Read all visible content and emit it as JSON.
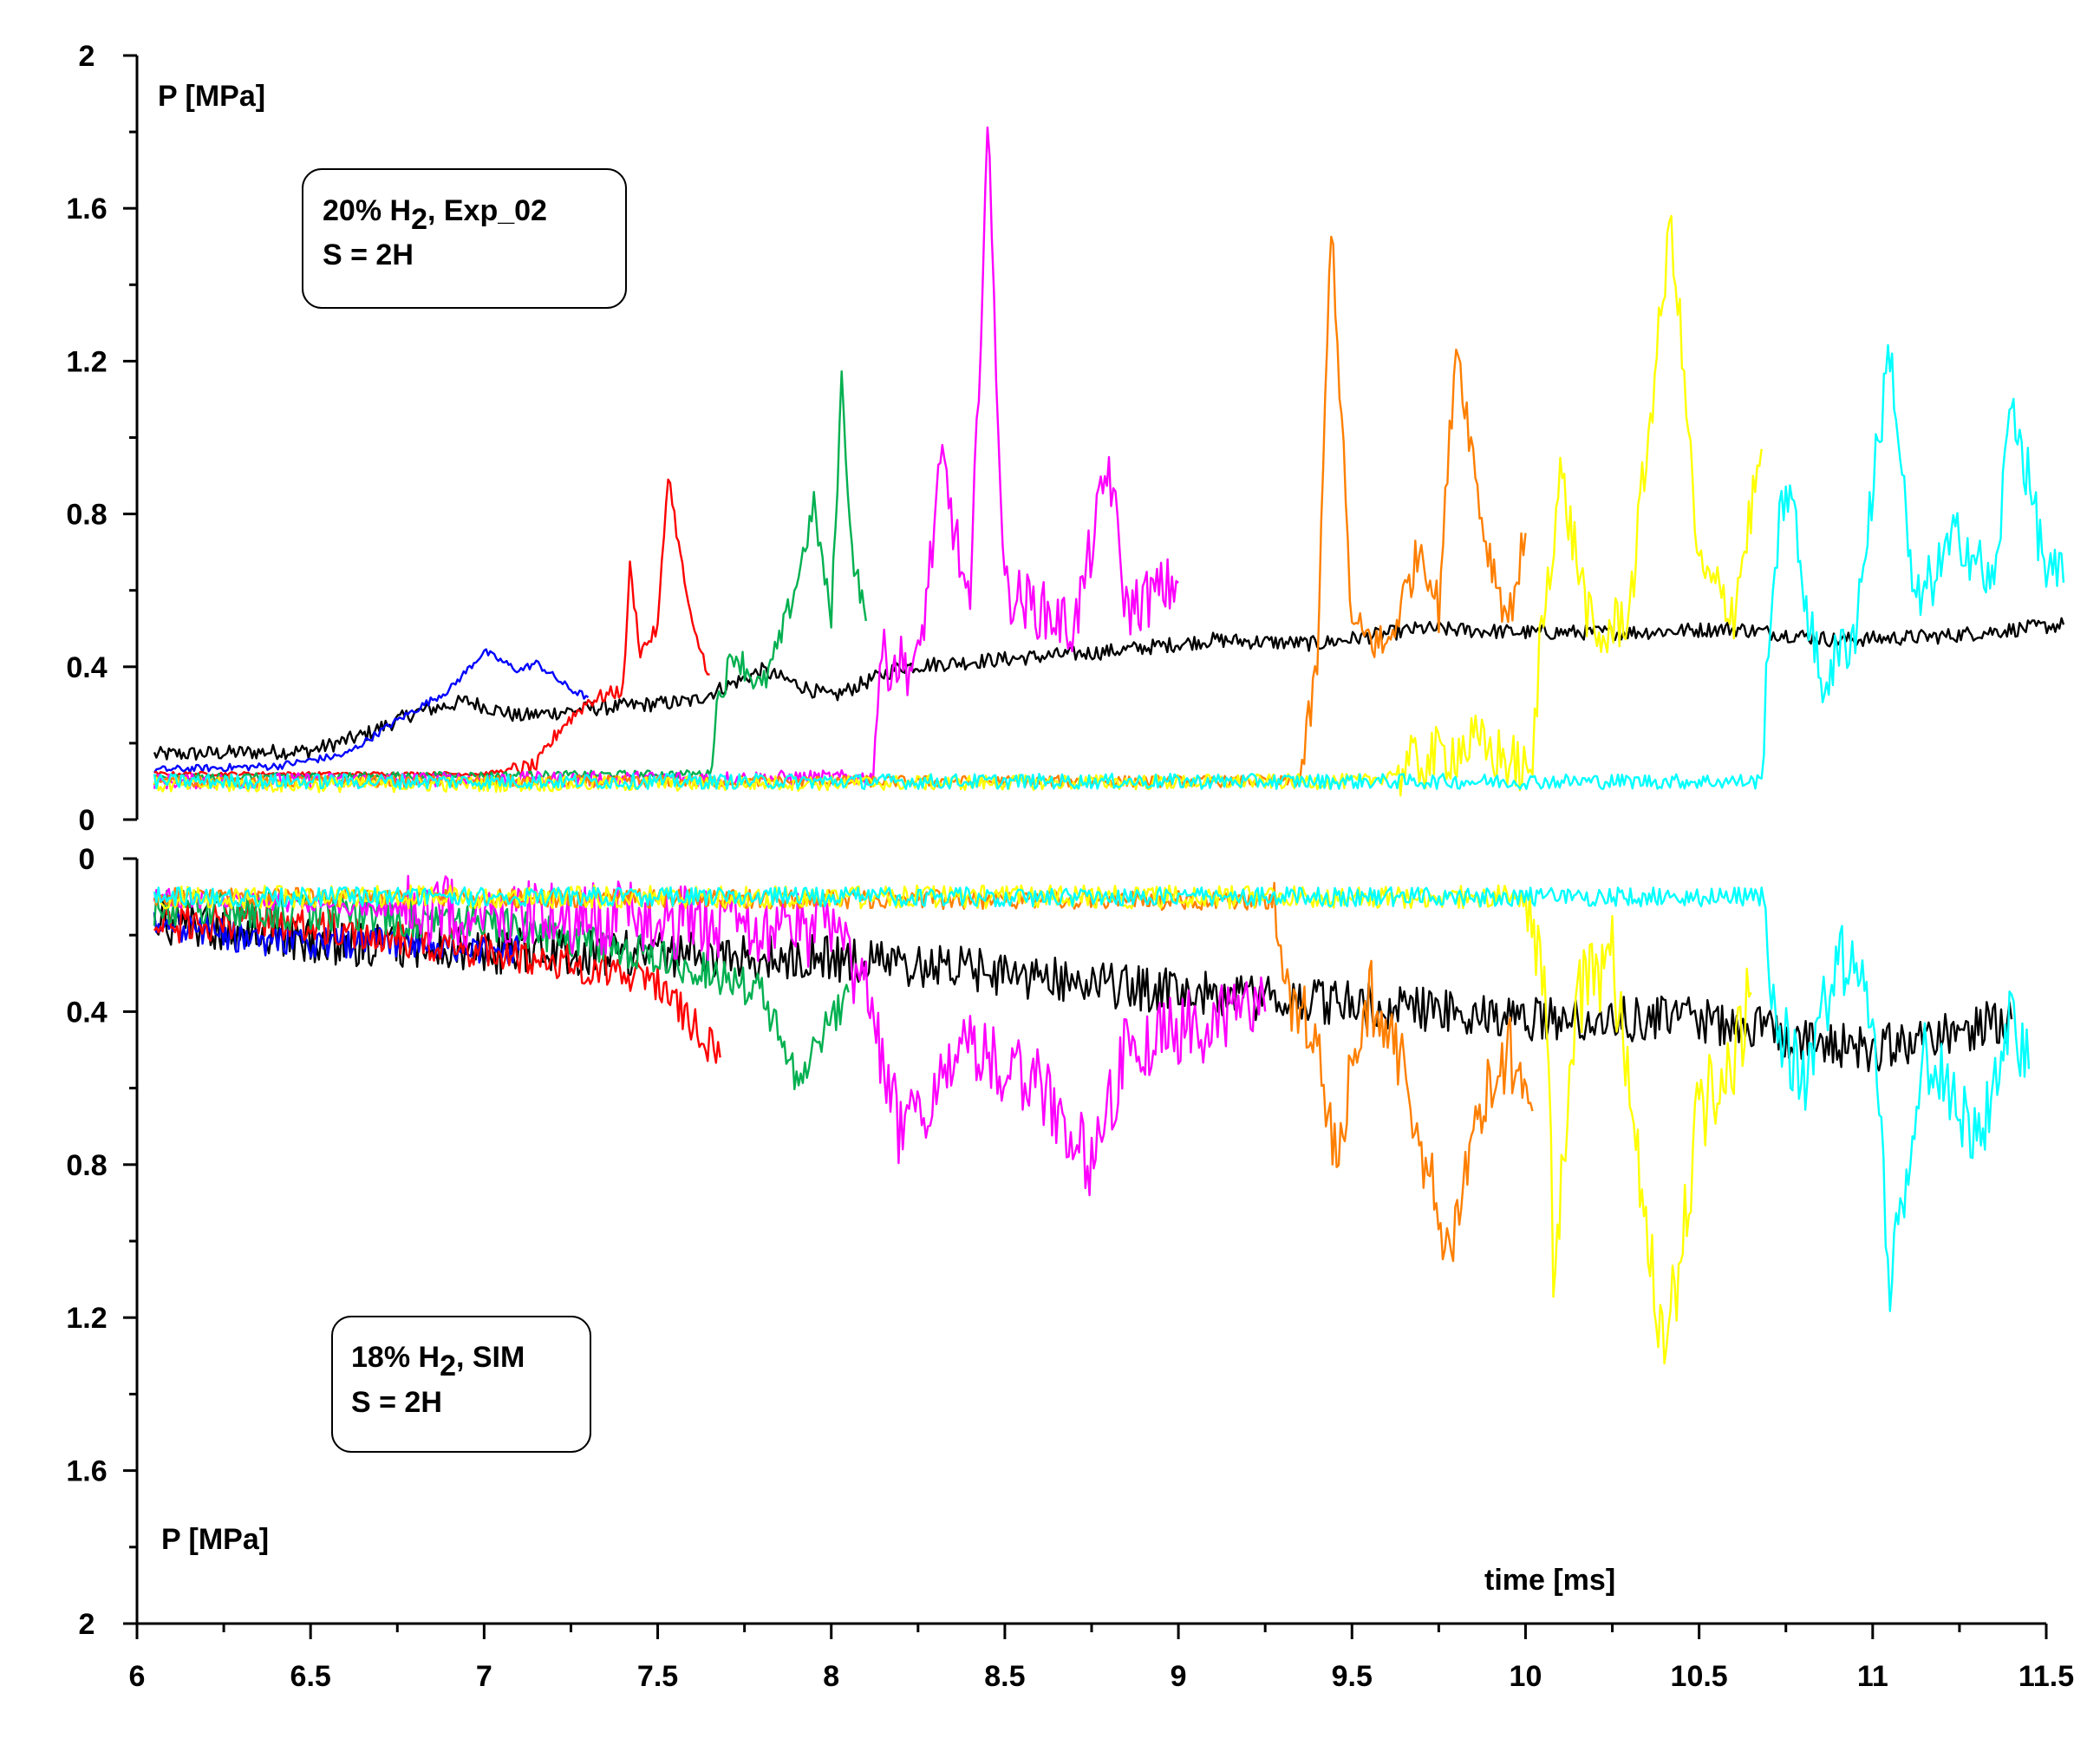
{
  "chart_data": {
    "type": "line",
    "title": "",
    "xlabel": "time [ms]",
    "xlim": [
      6,
      11.5
    ],
    "x_ticks": [
      "6",
      "6.5",
      "7",
      "7.5",
      "8",
      "8.5",
      "9",
      "9.5",
      "10",
      "10.5",
      "11",
      "11.5"
    ],
    "panels": [
      {
        "name": "experiment",
        "ylabel": "P [MPa]",
        "ylim": [
          0,
          2
        ],
        "inverted": false,
        "y_ticks": [
          "0",
          "0.4",
          "0.8",
          "1.2",
          "1.6",
          "2"
        ],
        "annotation": {
          "line1_prefix": "20% H",
          "line1_sub": "2",
          "line1_suffix": ", Exp_02",
          "line2": "S = 2H"
        },
        "series": [
          {
            "name": "black",
            "color": "#000000",
            "base": 0.17,
            "rise_start": 6.55,
            "rise_end": 6.95,
            "after": 0.3,
            "end": 11.55,
            "noise": 0.02,
            "points": [
              [
                6.05,
                0.17
              ],
              [
                6.5,
                0.18
              ],
              [
                6.65,
                0.22
              ],
              [
                6.8,
                0.28
              ],
              [
                6.95,
                0.31
              ],
              [
                7.1,
                0.27
              ],
              [
                7.3,
                0.29
              ],
              [
                7.6,
                0.31
              ],
              [
                7.8,
                0.39
              ],
              [
                8.0,
                0.32
              ],
              [
                8.2,
                0.4
              ],
              [
                8.5,
                0.42
              ],
              [
                8.8,
                0.44
              ],
              [
                9.1,
                0.47
              ],
              [
                9.4,
                0.46
              ],
              [
                9.7,
                0.5
              ],
              [
                10.0,
                0.49
              ],
              [
                10.3,
                0.49
              ],
              [
                10.6,
                0.5
              ],
              [
                10.9,
                0.47
              ],
              [
                11.2,
                0.48
              ],
              [
                11.55,
                0.51
              ]
            ]
          },
          {
            "name": "blue",
            "color": "#0000ff",
            "color_hex": "#0000ff",
            "end": 7.3,
            "noise": 0.01,
            "points": [
              [
                6.05,
                0.13
              ],
              [
                6.4,
                0.14
              ],
              [
                6.6,
                0.17
              ],
              [
                6.75,
                0.26
              ],
              [
                6.9,
                0.34
              ],
              [
                7.0,
                0.44
              ],
              [
                7.1,
                0.39
              ],
              [
                7.15,
                0.41
              ],
              [
                7.25,
                0.34
              ],
              [
                7.3,
                0.32
              ]
            ]
          },
          {
            "name": "red",
            "color": "#ff0000",
            "end": 7.65,
            "noise": 0.02,
            "points": [
              [
                6.05,
                0.12
              ],
              [
                7.0,
                0.12
              ],
              [
                7.15,
                0.14
              ],
              [
                7.22,
                0.24
              ],
              [
                7.3,
                0.31
              ],
              [
                7.4,
                0.34
              ],
              [
                7.42,
                0.66
              ],
              [
                7.45,
                0.44
              ],
              [
                7.5,
                0.5
              ],
              [
                7.53,
                0.91
              ],
              [
                7.56,
                0.72
              ],
              [
                7.6,
                0.5
              ],
              [
                7.65,
                0.38
              ]
            ]
          },
          {
            "name": "green",
            "color": "#00b050",
            "end": 8.1,
            "noise": 0.04,
            "points": [
              [
                6.05,
                0.11
              ],
              [
                7.65,
                0.12
              ],
              [
                7.67,
                0.3
              ],
              [
                7.72,
                0.44
              ],
              [
                7.8,
                0.34
              ],
              [
                7.85,
                0.46
              ],
              [
                7.9,
                0.62
              ],
              [
                7.95,
                0.82
              ],
              [
                8.0,
                0.52
              ],
              [
                8.03,
                1.15
              ],
              [
                8.06,
                0.7
              ],
              [
                8.1,
                0.52
              ]
            ]
          },
          {
            "name": "magenta",
            "color": "#ff00ff",
            "end": 9.0,
            "noise": 0.08,
            "points": [
              [
                6.05,
                0.1
              ],
              [
                8.12,
                0.11
              ],
              [
                8.14,
                0.42
              ],
              [
                8.25,
                0.4
              ],
              [
                8.32,
                0.94
              ],
              [
                8.4,
                0.52
              ],
              [
                8.45,
                1.81
              ],
              [
                8.5,
                0.6
              ],
              [
                8.6,
                0.55
              ],
              [
                8.7,
                0.5
              ],
              [
                8.8,
                0.93
              ],
              [
                8.85,
                0.55
              ],
              [
                8.95,
                0.6
              ],
              [
                9.0,
                0.62
              ]
            ]
          },
          {
            "name": "orange",
            "color": "#ff7f00",
            "end": 10.0,
            "noise": 0.06,
            "points": [
              [
                6.05,
                0.1
              ],
              [
                9.35,
                0.1
              ],
              [
                9.4,
                0.4
              ],
              [
                9.44,
                1.58
              ],
              [
                9.5,
                0.5
              ],
              [
                9.6,
                0.45
              ],
              [
                9.7,
                0.72
              ],
              [
                9.75,
                0.55
              ],
              [
                9.8,
                1.26
              ],
              [
                9.88,
                0.75
              ],
              [
                9.95,
                0.52
              ],
              [
                10.0,
                0.75
              ]
            ]
          },
          {
            "name": "yellow",
            "color": "#ffff00",
            "end": 10.68,
            "noise": 0.08,
            "points": [
              [
                6.05,
                0.09
              ],
              [
                9.55,
                0.1
              ],
              [
                9.85,
                0.2
              ],
              [
                10.02,
                0.12
              ],
              [
                10.04,
                0.45
              ],
              [
                10.1,
                0.9
              ],
              [
                10.2,
                0.45
              ],
              [
                10.3,
                0.55
              ],
              [
                10.42,
                1.57
              ],
              [
                10.5,
                0.65
              ],
              [
                10.6,
                0.55
              ],
              [
                10.68,
                0.97
              ]
            ]
          },
          {
            "name": "cyan",
            "color": "#00ffff",
            "end": 11.55,
            "noise": 0.08,
            "points": [
              [
                6.05,
                0.1
              ],
              [
                10.68,
                0.1
              ],
              [
                10.7,
                0.5
              ],
              [
                10.75,
                0.9
              ],
              [
                10.85,
                0.35
              ],
              [
                10.95,
                0.5
              ],
              [
                11.05,
                1.24
              ],
              [
                11.12,
                0.55
              ],
              [
                11.25,
                0.75
              ],
              [
                11.35,
                0.6
              ],
              [
                11.4,
                1.11
              ],
              [
                11.5,
                0.65
              ],
              [
                11.55,
                0.62
              ]
            ]
          }
        ]
      },
      {
        "name": "simulation",
        "ylabel": "P [MPa]",
        "ylim": [
          0,
          2
        ],
        "inverted": true,
        "y_ticks": [
          "0",
          "0.4",
          "0.8",
          "1.2",
          "1.6",
          "2"
        ],
        "annotation": {
          "line1_prefix": "18% H",
          "line1_sub": "2",
          "line1_suffix": ", SIM",
          "line2": "S = 2H"
        },
        "series": [
          {
            "name": "black",
            "color": "#000000",
            "end": 11.4,
            "noise": 0.06,
            "points": [
              [
                6.05,
                0.16
              ],
              [
                6.5,
                0.22
              ],
              [
                7.0,
                0.24
              ],
              [
                7.5,
                0.25
              ],
              [
                8.0,
                0.26
              ],
              [
                8.5,
                0.3
              ],
              [
                9.0,
                0.35
              ],
              [
                9.5,
                0.38
              ],
              [
                10.0,
                0.42
              ],
              [
                10.5,
                0.42
              ],
              [
                11.0,
                0.5
              ],
              [
                11.4,
                0.42
              ]
            ]
          },
          {
            "name": "blue",
            "color": "#0000ff",
            "end": 7.1,
            "noise": 0.04,
            "points": [
              [
                6.05,
                0.17
              ],
              [
                6.4,
                0.22
              ],
              [
                6.8,
                0.22
              ],
              [
                7.1,
                0.24
              ]
            ]
          },
          {
            "name": "red",
            "color": "#ff0000",
            "end": 7.68,
            "noise": 0.05,
            "points": [
              [
                6.05,
                0.17
              ],
              [
                6.5,
                0.17
              ],
              [
                7.0,
                0.24
              ],
              [
                7.3,
                0.28
              ],
              [
                7.5,
                0.32
              ],
              [
                7.68,
                0.52
              ]
            ]
          },
          {
            "name": "green",
            "color": "#00b050",
            "end": 8.05,
            "noise": 0.05,
            "points": [
              [
                6.05,
                0.13
              ],
              [
                6.5,
                0.14
              ],
              [
                7.0,
                0.17
              ],
              [
                7.5,
                0.25
              ],
              [
                7.8,
                0.35
              ],
              [
                7.9,
                0.57
              ],
              [
                8.05,
                0.35
              ]
            ]
          },
          {
            "name": "magenta",
            "color": "#ff00ff",
            "end": 9.25,
            "noise": 0.1,
            "points": [
              [
                6.05,
                0.1
              ],
              [
                7.5,
                0.16
              ],
              [
                8.0,
                0.2
              ],
              [
                8.1,
                0.35
              ],
              [
                8.2,
                0.72
              ],
              [
                8.4,
                0.5
              ],
              [
                8.6,
                0.6
              ],
              [
                8.75,
                0.8
              ],
              [
                8.85,
                0.5
              ],
              [
                9.0,
                0.45
              ],
              [
                9.25,
                0.4
              ]
            ]
          },
          {
            "name": "orange",
            "color": "#ff7f00",
            "end": 10.02,
            "noise": 0.1,
            "points": [
              [
                6.05,
                0.1
              ],
              [
                9.27,
                0.11
              ],
              [
                9.32,
                0.35
              ],
              [
                9.4,
                0.5
              ],
              [
                9.45,
                0.78
              ],
              [
                9.55,
                0.35
              ],
              [
                9.65,
                0.55
              ],
              [
                9.7,
                0.75
              ],
              [
                9.78,
                1.06
              ],
              [
                9.85,
                0.7
              ],
              [
                9.95,
                0.5
              ],
              [
                10.02,
                0.66
              ]
            ]
          },
          {
            "name": "yellow",
            "color": "#ffff00",
            "end": 10.65,
            "noise": 0.12,
            "points": [
              [
                6.05,
                0.1
              ],
              [
                10.0,
                0.1
              ],
              [
                10.06,
                0.4
              ],
              [
                10.08,
                1.05
              ],
              [
                10.15,
                0.35
              ],
              [
                10.25,
                0.25
              ],
              [
                10.3,
                0.6
              ],
              [
                10.4,
                1.33
              ],
              [
                10.5,
                0.65
              ],
              [
                10.6,
                0.55
              ],
              [
                10.65,
                0.35
              ]
            ]
          },
          {
            "name": "cyan",
            "color": "#00ffff",
            "end": 11.45,
            "noise": 0.1,
            "points": [
              [
                6.05,
                0.1
              ],
              [
                10.68,
                0.1
              ],
              [
                10.72,
                0.4
              ],
              [
                10.8,
                0.6
              ],
              [
                10.9,
                0.25
              ],
              [
                11.0,
                0.4
              ],
              [
                11.05,
                1.1
              ],
              [
                11.15,
                0.5
              ],
              [
                11.3,
                0.75
              ],
              [
                11.4,
                0.4
              ],
              [
                11.45,
                0.55
              ]
            ]
          }
        ]
      }
    ]
  }
}
